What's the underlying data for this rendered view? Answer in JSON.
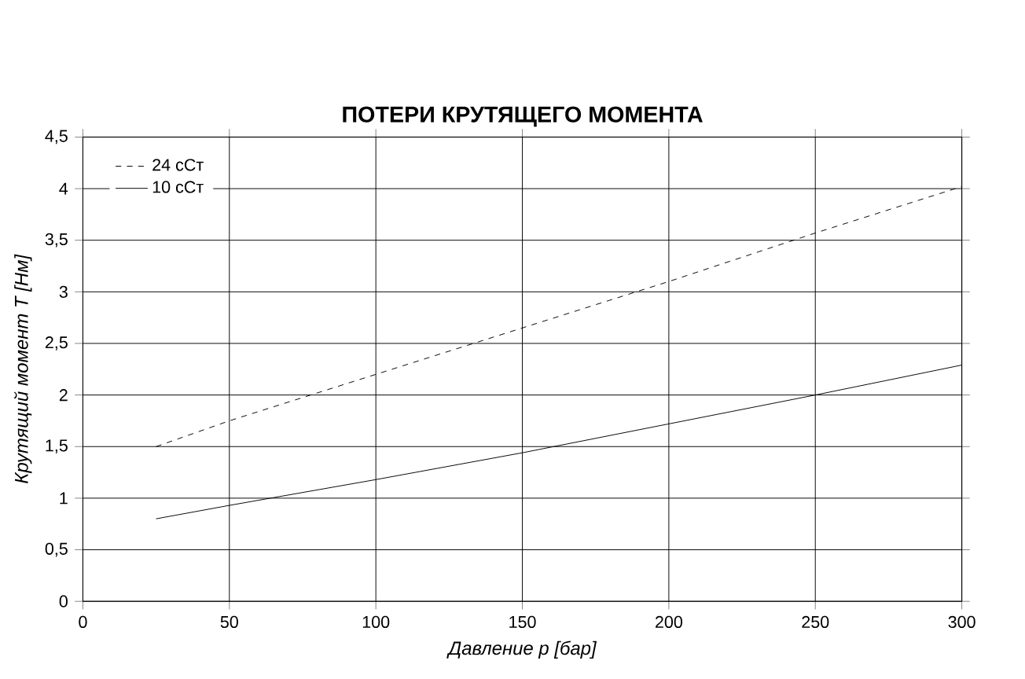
{
  "chart_data": {
    "type": "line",
    "title": "ПОТЕРИ КРУТЯЩЕГО МОМЕНТА",
    "xlabel": "Давление p [бар]",
    "ylabel": "Крутящий момент T [Нм]",
    "x": [
      25,
      50,
      100,
      150,
      200,
      250,
      300
    ],
    "series": [
      {
        "name": "24 сСт",
        "color": "#000000",
        "line_style": "dashed",
        "values": [
          1.5,
          1.75,
          2.2,
          2.65,
          3.1,
          3.57,
          4.02
        ]
      },
      {
        "name": "10 сСт",
        "color": "#000000",
        "line_style": "solid",
        "values": [
          0.8,
          0.93,
          1.18,
          1.44,
          1.72,
          2.0,
          2.29
        ]
      }
    ],
    "xlim": [
      0,
      300
    ],
    "xticks": [
      0,
      50,
      100,
      150,
      200,
      250,
      300
    ],
    "ylim": [
      0,
      4.5
    ],
    "yticks": [
      0,
      {
        "value": 0.5,
        "label": "0,5"
      },
      1,
      {
        "value": 1.5,
        "label": "1,5"
      },
      2,
      {
        "value": 2.5,
        "label": "2,5"
      },
      3,
      {
        "value": 3.5,
        "label": "3,5"
      },
      4,
      {
        "value": 4.5,
        "label": "4,5"
      }
    ],
    "grid": true,
    "legend": "top left",
    "marker": "none"
  }
}
